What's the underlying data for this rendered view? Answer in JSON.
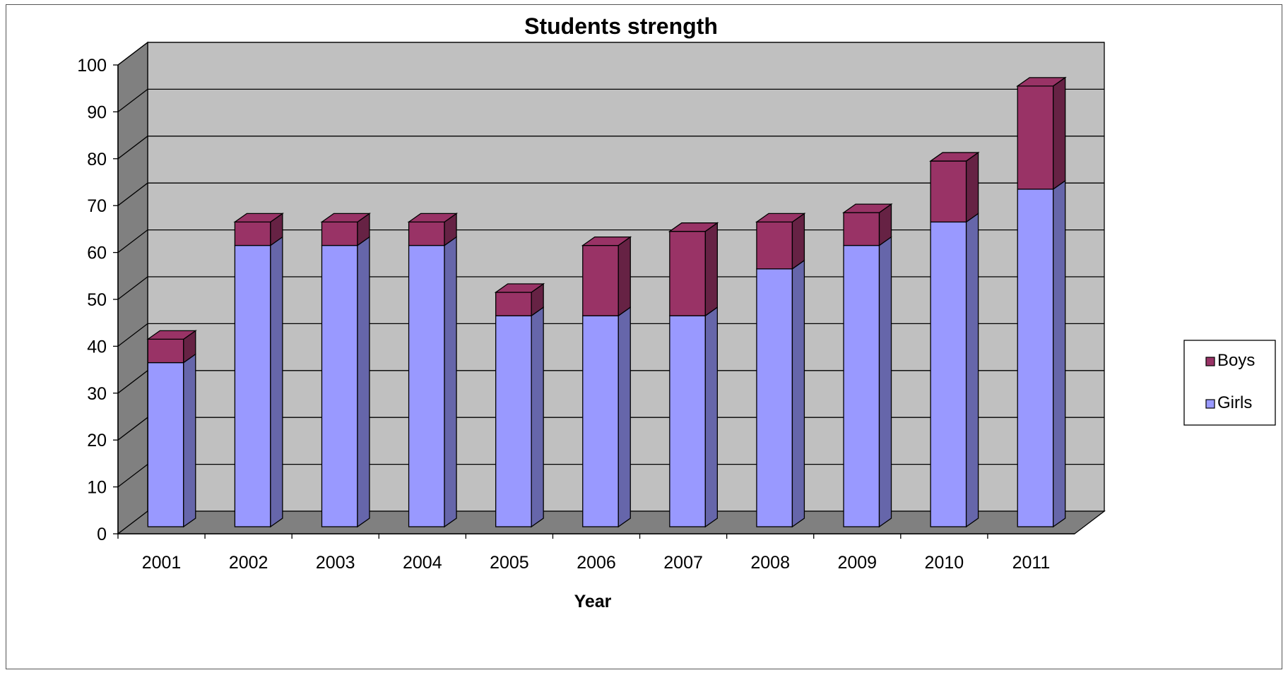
{
  "chart_data": {
    "type": "bar",
    "stacked": true,
    "style": "3d-column",
    "title": "Students strength",
    "xlabel": "Year",
    "ylabel": "",
    "ylim": [
      0,
      100
    ],
    "ytick_step": 10,
    "grid": true,
    "legend_position": "right",
    "categories": [
      "2001",
      "2002",
      "2003",
      "2004",
      "2005",
      "2006",
      "2007",
      "2008",
      "2009",
      "2010",
      "2011"
    ],
    "series": [
      {
        "name": "Girls",
        "color": "#9999ff",
        "side_color": "#6666aa",
        "values": [
          35,
          60,
          60,
          60,
          45,
          45,
          45,
          55,
          60,
          65,
          72
        ]
      },
      {
        "name": "Boys",
        "color": "#993366",
        "side_color": "#662244",
        "values": [
          5,
          5,
          5,
          5,
          5,
          15,
          18,
          10,
          7,
          13,
          22
        ]
      }
    ],
    "legend_order": [
      "Boys",
      "Girls"
    ],
    "colors": {
      "back_wall": "#c0c0c0",
      "side_wall": "#808080",
      "floor": "#808080"
    }
  }
}
